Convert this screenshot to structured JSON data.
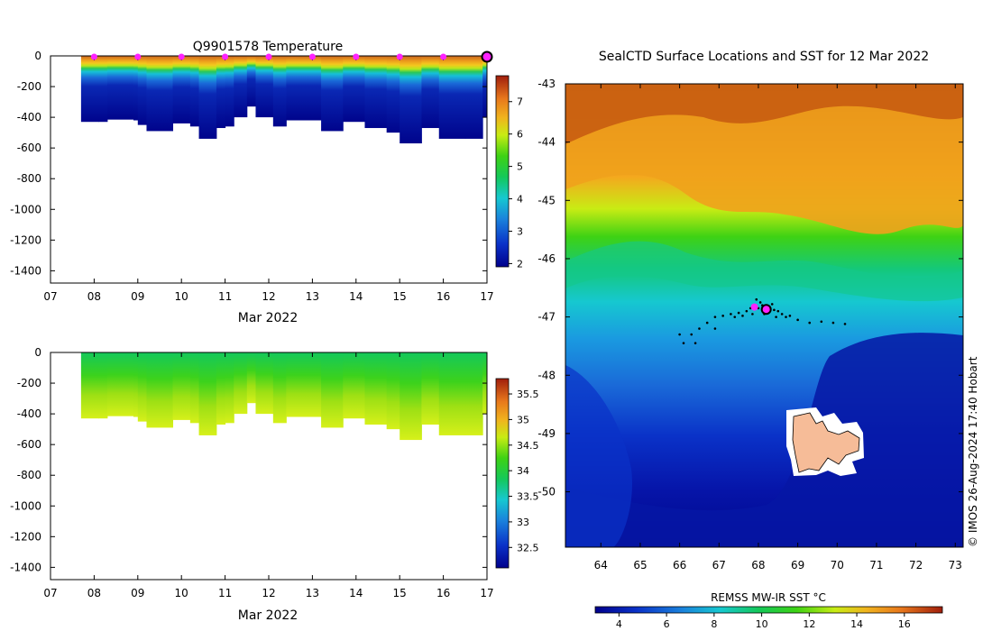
{
  "chart_data": [
    {
      "type": "heatmap",
      "panel": "top-left",
      "title": "Q9901578  Temperature",
      "xlabel": "Mar 2022",
      "ylabel": "",
      "x_ticks": [
        "07",
        "08",
        "09",
        "10",
        "11",
        "12",
        "13",
        "14",
        "15",
        "16",
        "17"
      ],
      "xlim": [
        7,
        17
      ],
      "y_ticks": [
        0,
        -200,
        -400,
        -600,
        -800,
        -1000,
        -1200,
        -1400
      ],
      "ylim": [
        -1480,
        0
      ],
      "colorbar": {
        "ticks": [
          2,
          3,
          4,
          5,
          6,
          7
        ],
        "range": [
          1.9,
          7.8
        ],
        "palette": "temperature"
      },
      "surface_value": 6.9,
      "deep_value": 2.1,
      "profiles": [
        {
          "t": 7.7,
          "depth": 430
        },
        {
          "t": 8.1,
          "depth": 430
        },
        {
          "t": 8.3,
          "depth": 415
        },
        {
          "t": 8.9,
          "depth": 420
        },
        {
          "t": 9.0,
          "depth": 450
        },
        {
          "t": 9.2,
          "depth": 490
        },
        {
          "t": 9.8,
          "depth": 440
        },
        {
          "t": 10.2,
          "depth": 460
        },
        {
          "t": 10.4,
          "depth": 540
        },
        {
          "t": 10.8,
          "depth": 470
        },
        {
          "t": 11.0,
          "depth": 460
        },
        {
          "t": 11.2,
          "depth": 400
        },
        {
          "t": 11.5,
          "depth": 330
        },
        {
          "t": 11.7,
          "depth": 400
        },
        {
          "t": 12.1,
          "depth": 460
        },
        {
          "t": 12.4,
          "depth": 420
        },
        {
          "t": 12.8,
          "depth": 420
        },
        {
          "t": 13.2,
          "depth": 490
        },
        {
          "t": 13.7,
          "depth": 430
        },
        {
          "t": 14.2,
          "depth": 470
        },
        {
          "t": 14.7,
          "depth": 500
        },
        {
          "t": 15.0,
          "depth": 570
        },
        {
          "t": 15.5,
          "depth": 470
        },
        {
          "t": 15.9,
          "depth": 540
        },
        {
          "t": 16.5,
          "depth": 540
        },
        {
          "t": 16.9,
          "depth": 400
        }
      ],
      "markers_x": [
        8,
        9,
        10,
        11,
        12,
        13,
        14,
        15,
        16
      ],
      "current_x": 17
    },
    {
      "type": "heatmap",
      "panel": "bottom-left",
      "title": "",
      "xlabel": "Mar 2022",
      "ylabel": "",
      "x_ticks": [
        "07",
        "08",
        "09",
        "10",
        "11",
        "12",
        "13",
        "14",
        "15",
        "16",
        "17"
      ],
      "xlim": [
        7,
        17
      ],
      "y_ticks": [
        0,
        -200,
        -400,
        -600,
        -800,
        -1000,
        -1200,
        -1400
      ],
      "ylim": [
        -1480,
        0
      ],
      "colorbar": {
        "ticks": [
          32.5,
          33,
          33.5,
          34,
          34.5,
          35,
          35.5
        ],
        "range": [
          32.1,
          35.8
        ],
        "palette": "salinity"
      },
      "surface_value": 33.8,
      "deep_value": 34.55
    },
    {
      "type": "heatmap",
      "panel": "right",
      "title": "SealCTD Surface Locations and SST for 12 Mar 2022",
      "xlabel": "",
      "ylabel": "",
      "x_ticks": [
        64,
        65,
        66,
        67,
        68,
        69,
        70,
        71,
        72,
        73
      ],
      "xlim": [
        63.1,
        73.2
      ],
      "y_ticks": [
        -43,
        -44,
        -45,
        -46,
        -47,
        -48,
        -49,
        -50
      ],
      "ylim": [
        -50.95,
        -43.0
      ],
      "colorbar": {
        "label": "REMSS MW-IR SST °C",
        "ticks": [
          4,
          6,
          8,
          10,
          12,
          14,
          16
        ],
        "range": [
          3,
          17.6
        ]
      },
      "track": [
        [
          66.0,
          -47.3
        ],
        [
          66.1,
          -47.45
        ],
        [
          66.3,
          -47.3
        ],
        [
          66.5,
          -47.2
        ],
        [
          66.7,
          -47.1
        ],
        [
          66.9,
          -47.0
        ],
        [
          67.1,
          -46.98
        ],
        [
          67.3,
          -46.95
        ],
        [
          67.5,
          -46.93
        ],
        [
          67.7,
          -46.9
        ],
        [
          67.8,
          -46.85
        ],
        [
          67.9,
          -46.82
        ],
        [
          68.0,
          -46.85
        ],
        [
          68.1,
          -46.8
        ],
        [
          68.2,
          -46.83
        ],
        [
          68.3,
          -46.85
        ],
        [
          68.4,
          -46.88
        ],
        [
          68.5,
          -46.9
        ],
        [
          68.6,
          -46.95
        ],
        [
          68.8,
          -46.98
        ],
        [
          69.0,
          -47.05
        ],
        [
          69.3,
          -47.1
        ],
        [
          69.6,
          -47.08
        ],
        [
          69.9,
          -47.1
        ],
        [
          70.2,
          -47.12
        ],
        [
          67.95,
          -46.7
        ],
        [
          68.05,
          -46.75
        ],
        [
          67.6,
          -46.98
        ],
        [
          67.4,
          -47.0
        ],
        [
          68.7,
          -47.0
        ],
        [
          66.9,
          -47.2
        ],
        [
          66.4,
          -47.45
        ],
        [
          68.35,
          -46.78
        ],
        [
          68.15,
          -46.95
        ],
        [
          67.85,
          -46.95
        ],
        [
          68.45,
          -47.0
        ]
      ],
      "current_location": [
        68.2,
        -46.87
      ],
      "recent_location": [
        67.9,
        -46.83
      ],
      "credit": "© IMOS 26-Aug-2024 17:40 Hobart"
    }
  ]
}
